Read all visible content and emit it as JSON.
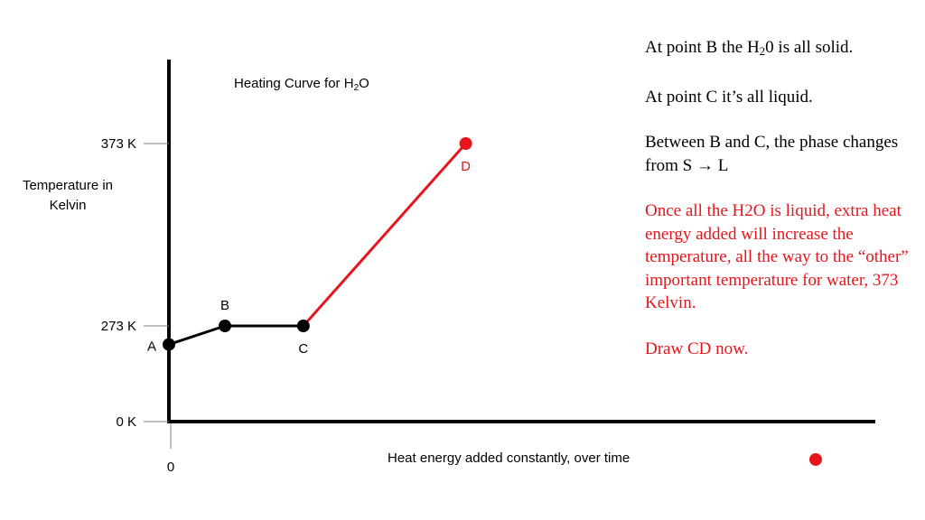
{
  "notes": {
    "line1_prefix": "At point B the H",
    "line1_sub": "2",
    "line1_suffix": "0 is all solid.",
    "line2": "At point C it’s all liquid.",
    "line3": "Between B and C, the phase changes from S → L",
    "line4": "Once all the H2O is liquid, extra heat energy added will increase the temperature, all the way to the “other” important temperature for water, 373 Kelvin.",
    "line5": "Draw CD now.",
    "highlight_color": "#e8141b"
  },
  "chart_data": {
    "type": "line",
    "title_prefix": "Heating Curve for H",
    "title_sub": "2",
    "title_suffix": "O",
    "ylabel": "Temperature in Kelvin",
    "xlabel": "Heat energy added constantly, over time",
    "y_ticks": [
      {
        "value": 373,
        "label": "373 K"
      },
      {
        "value": 273,
        "label": "273 K"
      },
      {
        "value": 0,
        "label": "0 K"
      }
    ],
    "x_ticks": [
      {
        "value": 0,
        "label": "0"
      }
    ],
    "points": [
      {
        "label": "A",
        "x": 0,
        "y": 220,
        "color": "#000000"
      },
      {
        "label": "B",
        "x": 1,
        "y": 273,
        "color": "#000000"
      },
      {
        "label": "C",
        "x": 2.4,
        "y": 273,
        "color": "#000000"
      },
      {
        "label": "D",
        "x": 5.3,
        "y": 373,
        "color": "#e8141b"
      }
    ],
    "segments": [
      {
        "from": "A",
        "to": "B",
        "color": "#000000"
      },
      {
        "from": "B",
        "to": "C",
        "color": "#000000"
      },
      {
        "from": "C",
        "to": "D",
        "color": "#e8141b"
      }
    ],
    "legend_marker_color": "#e8141b"
  }
}
